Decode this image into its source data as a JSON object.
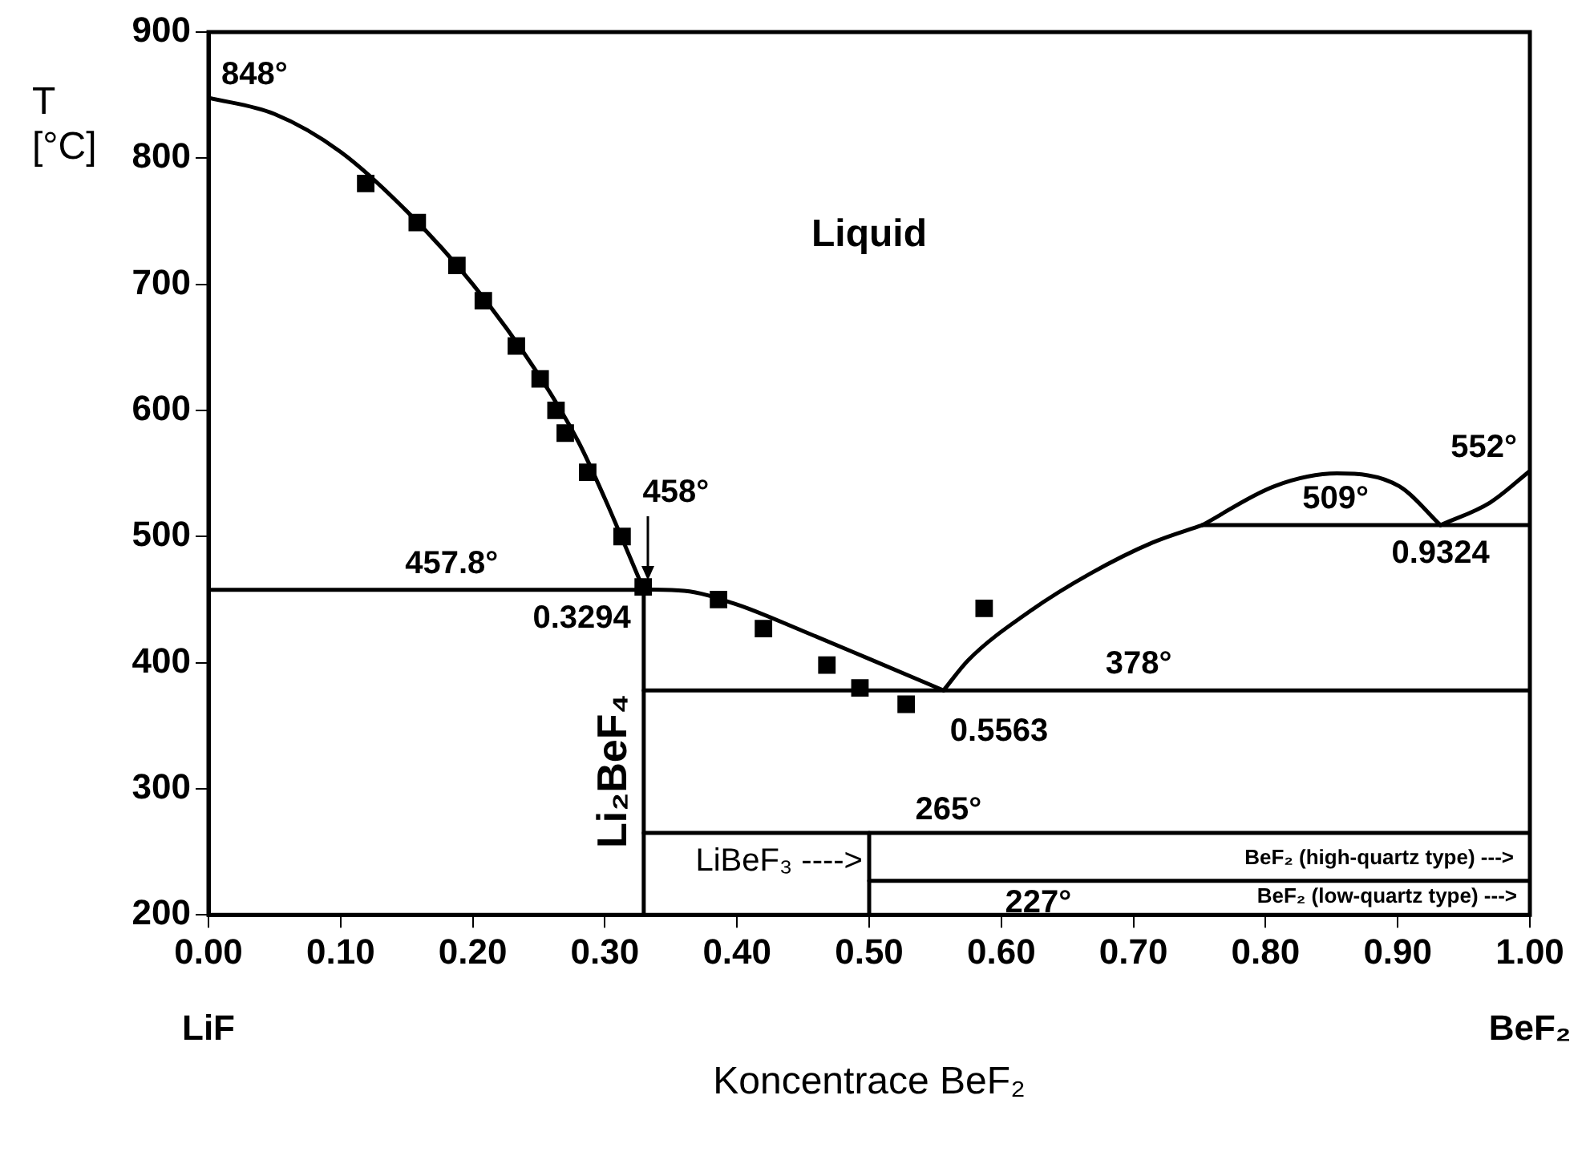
{
  "chart_data": {
    "type": "line",
    "xlabel": "Koncentrace BeF₂",
    "ylabel": "T [°C]",
    "xlim": [
      0,
      1
    ],
    "ylim": [
      200,
      900
    ],
    "xticks": [
      {
        "value": 0,
        "label": "0.00"
      },
      {
        "value": 0.1,
        "label": "0.10"
      },
      {
        "value": 0.2,
        "label": "0.20"
      },
      {
        "value": 0.3,
        "label": "0.30"
      },
      {
        "value": 0.4,
        "label": "0.40"
      },
      {
        "value": 0.5,
        "label": "0.50"
      },
      {
        "value": 0.6,
        "label": "0.60"
      },
      {
        "value": 0.7,
        "label": "0.70"
      },
      {
        "value": 0.8,
        "label": "0.80"
      },
      {
        "value": 0.9,
        "label": "0.90"
      },
      {
        "value": 1,
        "label": "1.00"
      }
    ],
    "yticks": [
      200,
      300,
      400,
      500,
      600,
      700,
      800,
      900
    ],
    "line_style": "solid",
    "series": [
      {
        "type": "scatter",
        "marker": "square",
        "color": "#000000",
        "x": [
          0.119,
          0.158,
          0.188,
          0.208,
          0.233,
          0.251,
          0.263,
          0.27,
          0.287,
          0.313,
          0.329,
          0.386,
          0.42,
          0.468,
          0.493,
          0.528,
          0.587
        ],
        "values": [
          780,
          749,
          715,
          687,
          651,
          625,
          600,
          582,
          551,
          500,
          460,
          450,
          427,
          398,
          380,
          367,
          443
        ]
      },
      {
        "type": "line",
        "color": "#000000",
        "x": [
          0,
          0.05,
          0.1,
          0.15,
          0.2,
          0.25,
          0.28,
          0.3,
          0.3294
        ],
        "values": [
          848,
          835,
          805,
          758,
          700,
          628,
          575,
          530,
          457.8
        ]
      },
      {
        "type": "line",
        "color": "#000000",
        "x": [
          0.3294,
          0.36,
          0.4,
          0.45,
          0.5,
          0.5563
        ],
        "values": [
          458,
          457,
          446,
          425,
          403,
          378
        ]
      },
      {
        "type": "line",
        "color": "#000000",
        "x": [
          0.5563,
          0.575,
          0.622,
          0.668,
          0.714,
          0.752
        ],
        "values": [
          378,
          402,
          441,
          471,
          495,
          509
        ]
      },
      {
        "type": "line",
        "color": "#000000",
        "x": [
          0.752,
          0.807,
          0.854,
          0.901,
          0.9324
        ],
        "values": [
          509,
          540,
          550,
          540,
          509
        ]
      },
      {
        "type": "line",
        "color": "#000000",
        "x": [
          0.9324,
          0.97,
          1
        ],
        "values": [
          509,
          527,
          552
        ]
      },
      {
        "type": "line",
        "color": "#000000",
        "x": [
          0,
          0.3294
        ],
        "values": [
          457.8,
          457.8
        ]
      },
      {
        "type": "line",
        "color": "#000000",
        "x": [
          0.3294,
          0.3294
        ],
        "values": [
          200,
          458
        ]
      },
      {
        "type": "line",
        "color": "#000000",
        "x": [
          0.3294,
          1
        ],
        "values": [
          378,
          378
        ]
      },
      {
        "type": "line",
        "color": "#000000",
        "x": [
          0.752,
          1
        ],
        "values": [
          509,
          509
        ]
      },
      {
        "type": "line",
        "color": "#000000",
        "x": [
          0.3294,
          1
        ],
        "values": [
          265,
          265
        ]
      },
      {
        "type": "line",
        "color": "#000000",
        "x": [
          0.5,
          1
        ],
        "values": [
          227,
          227
        ]
      },
      {
        "type": "line",
        "color": "#000000",
        "x": [
          0.5,
          0.5
        ],
        "values": [
          200,
          265
        ]
      }
    ],
    "annotations": [
      {
        "text": "848°",
        "x": 0,
        "y": 848
      },
      {
        "text": "457.8°",
        "x": 0.184,
        "y": 457.8
      },
      {
        "text": "458°",
        "x": 0.3294,
        "y": 458
      },
      {
        "text": "0.3294",
        "x": 0.3294,
        "y": 457.8
      },
      "Liquid",
      {
        "text": "0.5563",
        "x": 0.5563,
        "y": 378
      },
      {
        "text": "378°",
        "x": 0.704,
        "y": 378
      },
      {
        "text": "509°",
        "x": 0.853,
        "y": 509
      },
      {
        "text": "0.9324",
        "x": 0.9324,
        "y": 509
      },
      {
        "text": "552°",
        "x": 1,
        "y": 552
      },
      {
        "text": "265°",
        "x": 0.56,
        "y": 265
      },
      {
        "text": "227°",
        "x": 0.628,
        "y": 227
      },
      {
        "text": "Li₂BeF₄",
        "x": 0.3294,
        "y": 314
      },
      {
        "text": "LiBeF₃ ---->",
        "x": 0.5,
        "y": 242
      },
      {
        "text": "BeF₂ (high-quartz type) --->",
        "x": 1,
        "y": 227
      },
      "BeF₂ (low-quartz type) --->",
      "LiF",
      "BeF₂"
    ]
  }
}
